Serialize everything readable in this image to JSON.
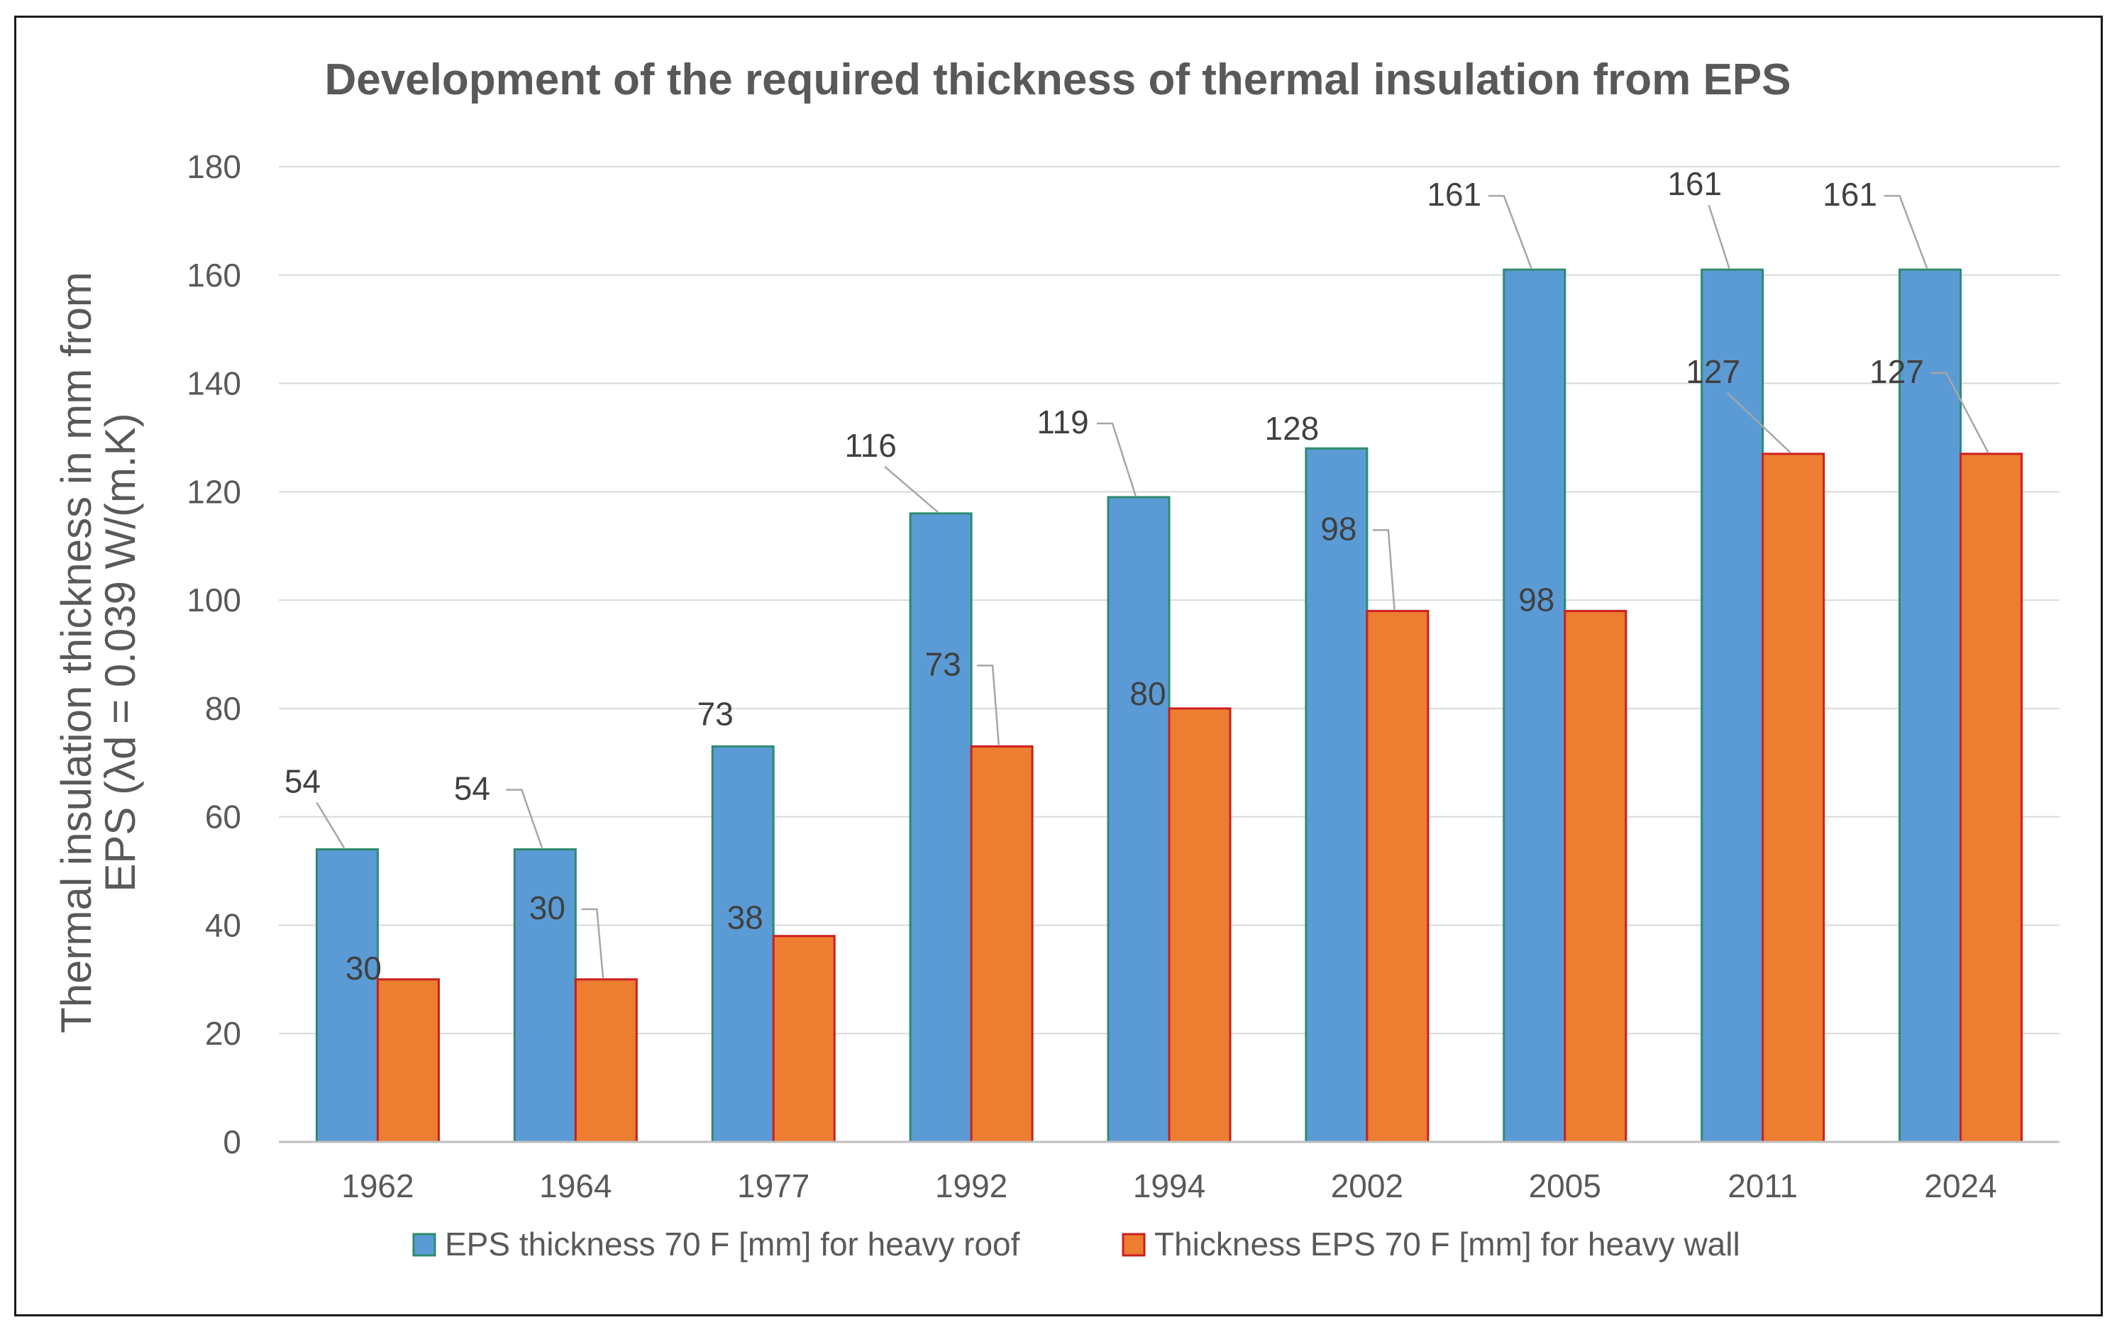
{
  "chart_data": {
    "type": "bar",
    "title": "Development of the required thickness of thermal insulation from EPS",
    "ylabel_lines": [
      "Thermal insulation thickness in mm from",
      "EPS (λd = 0.039 W/(m.K)"
    ],
    "xlabel": "",
    "categories": [
      "1962",
      "1964",
      "1977",
      "1992",
      "1994",
      "2002",
      "2005",
      "2011",
      "2024"
    ],
    "ylim": [
      0,
      180
    ],
    "yticks": [
      0,
      20,
      40,
      60,
      80,
      100,
      120,
      140,
      160,
      180
    ],
    "grid": true,
    "legend_position": "bottom",
    "series": [
      {
        "name": "EPS thickness 70 F [mm] for heavy roof",
        "values": [
          54,
          54,
          73,
          116,
          119,
          128,
          161,
          161,
          161
        ],
        "labels": [
          "54",
          "54",
          "73",
          "116",
          "119",
          "128",
          "161",
          "161",
          "161"
        ],
        "color": "#5b9bd5",
        "border": "#2e8b6e"
      },
      {
        "name": "Thickness EPS 70 F [mm] for heavy wall",
        "values": [
          30,
          30,
          38,
          73,
          80,
          98,
          98,
          127,
          127
        ],
        "labels": [
          "30",
          "30",
          "38",
          "73",
          "80",
          "98",
          "98",
          "127",
          "127"
        ],
        "color": "#ed7d31",
        "border": "#cc1f1f"
      }
    ]
  }
}
